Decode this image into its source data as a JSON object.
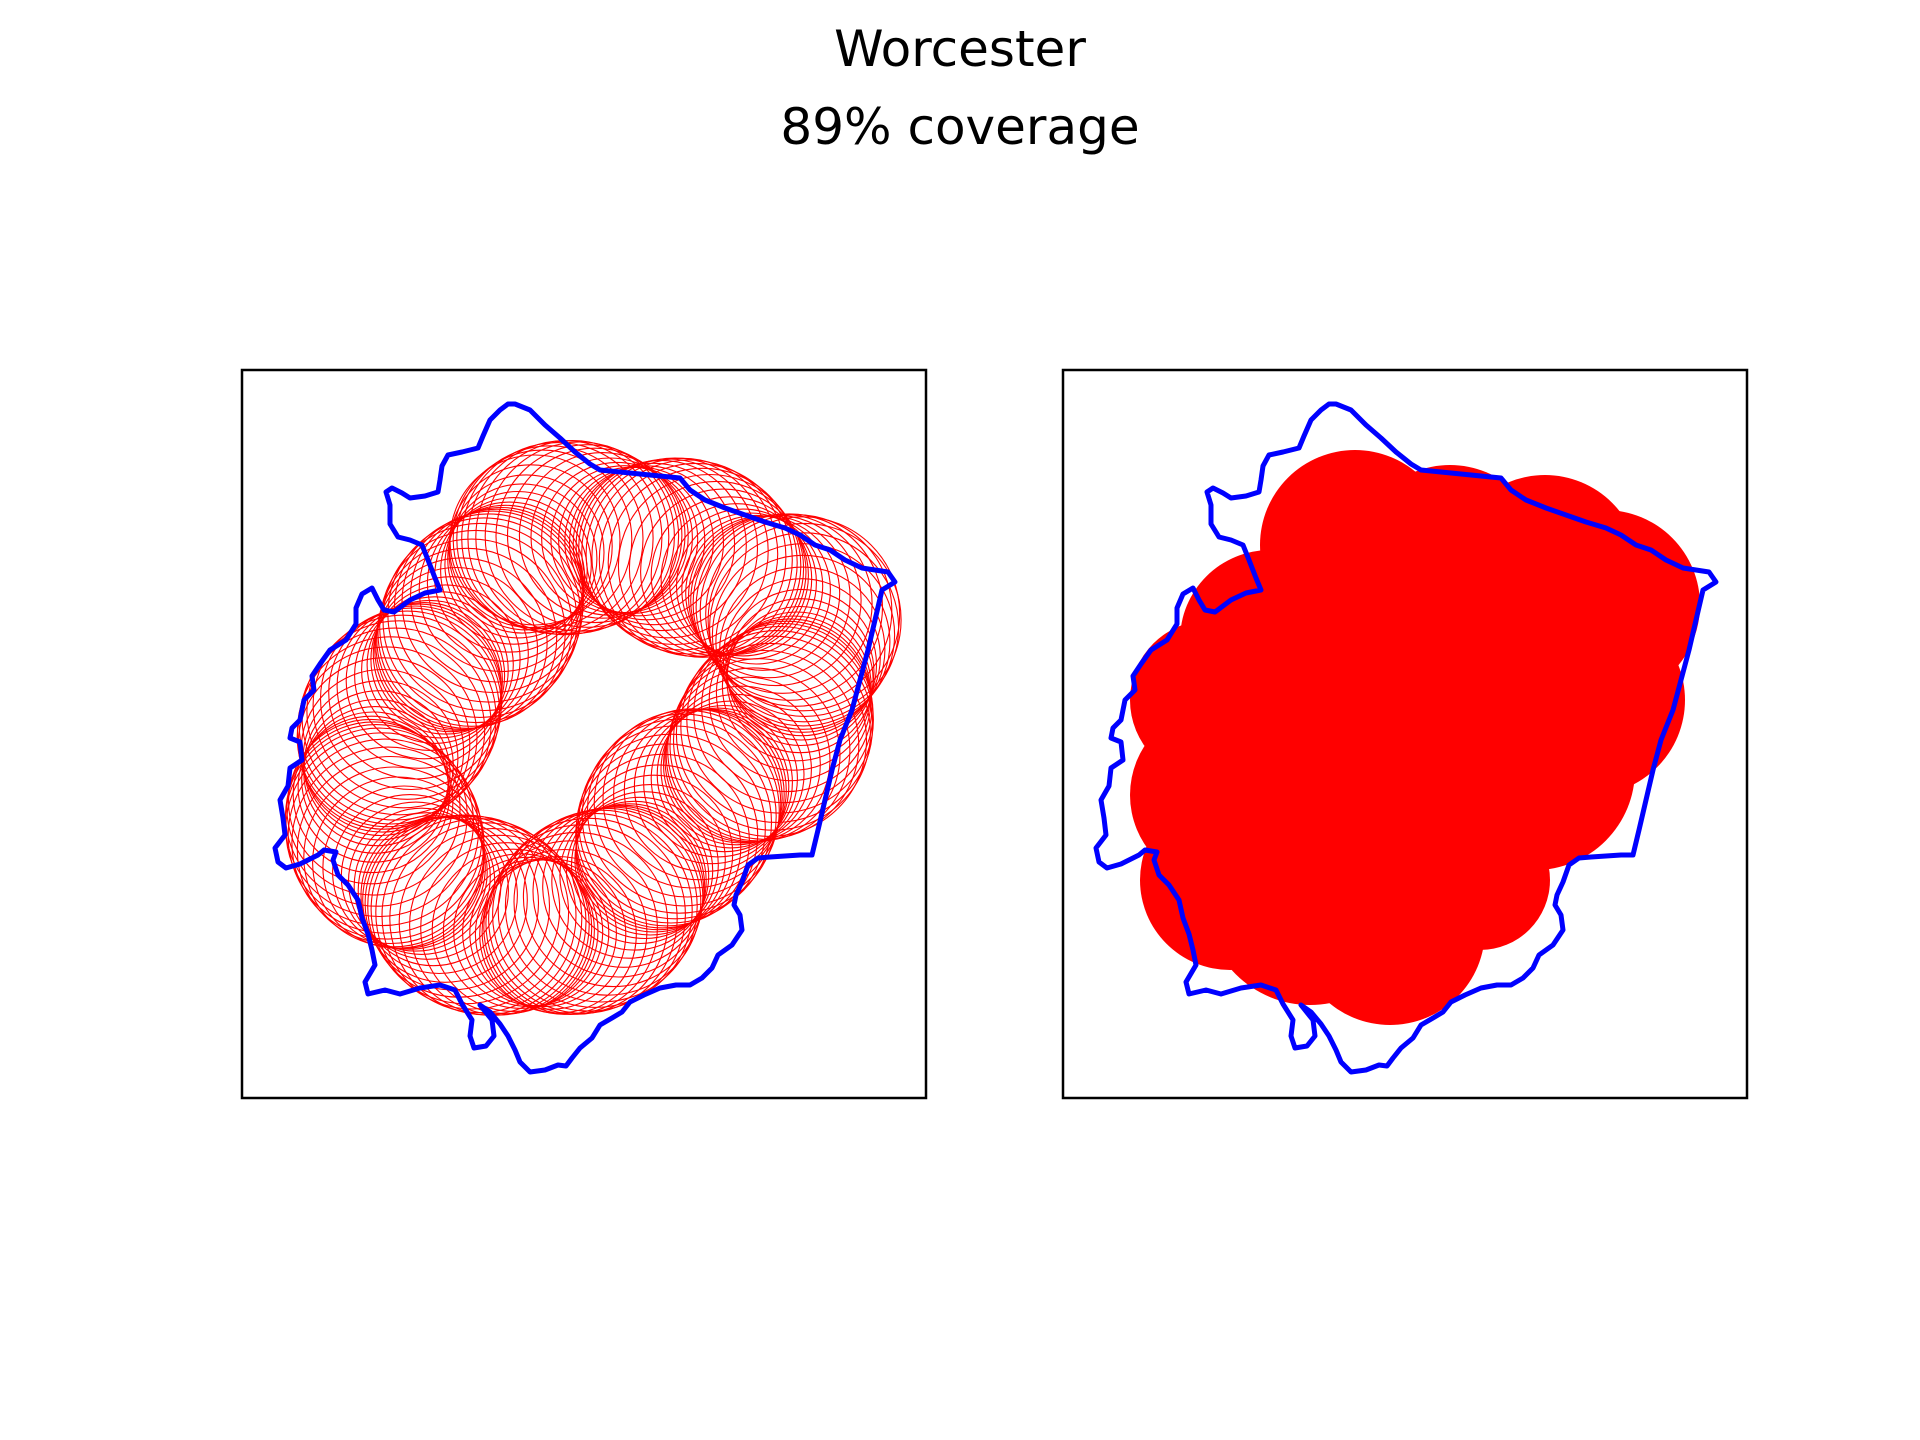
{
  "title": "Worcester",
  "subtitle": "89% coverage",
  "colors": {
    "boundary": "#0000ff",
    "coverage": "#ff0000",
    "frame": "#000000",
    "background": "#ffffff"
  },
  "panels": [
    {
      "name": "coverage-outlines",
      "style": "outline"
    },
    {
      "name": "coverage-filled",
      "style": "filled"
    }
  ]
}
